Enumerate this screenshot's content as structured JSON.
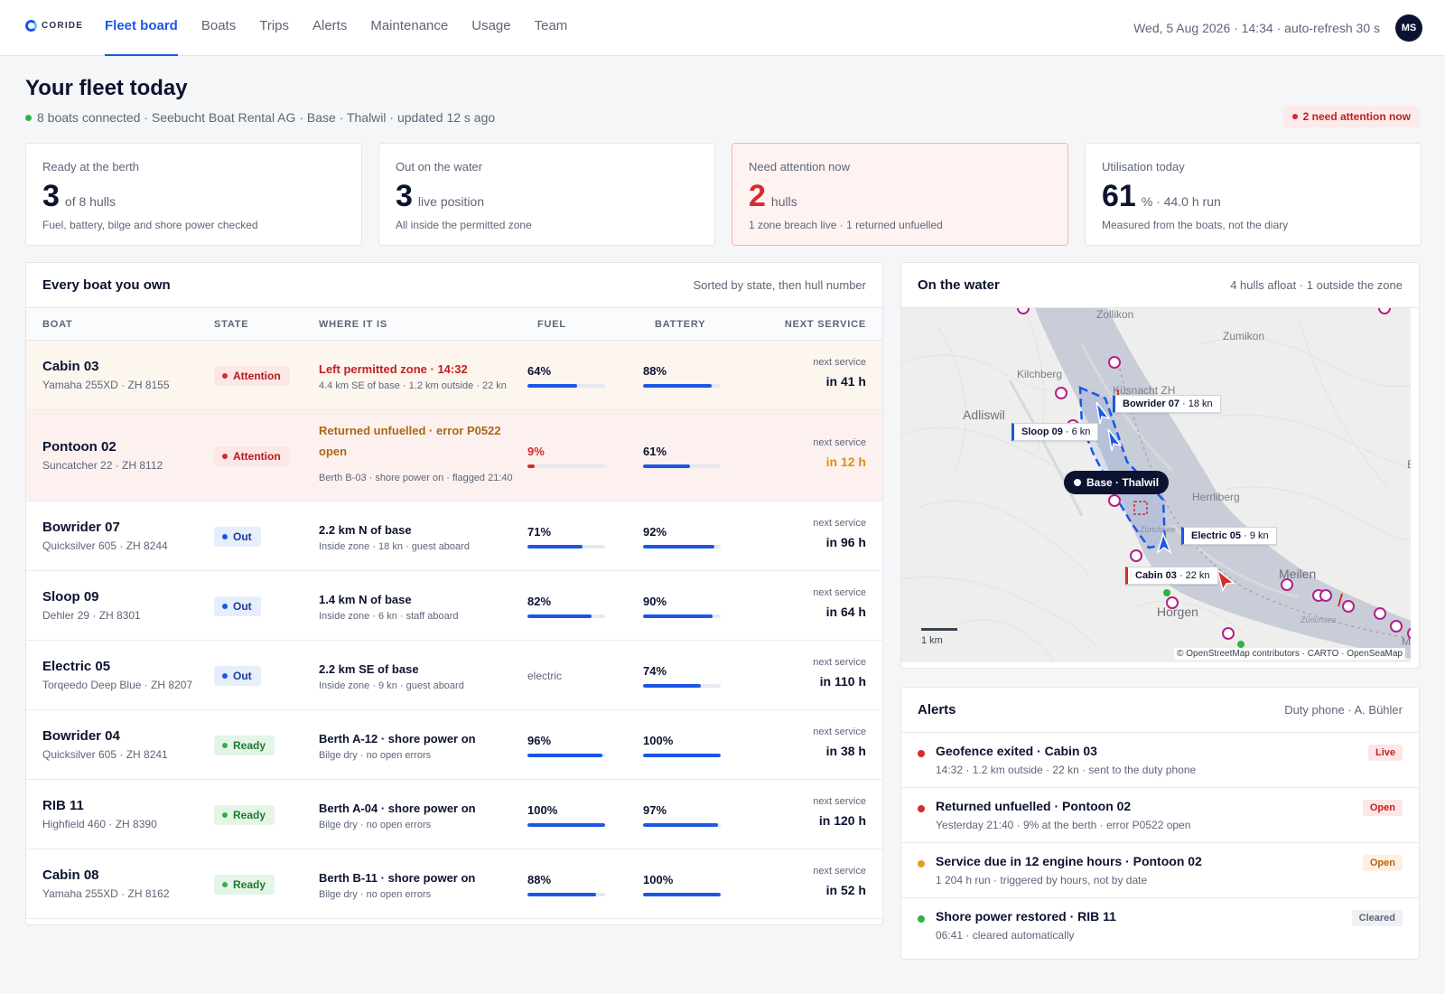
{
  "brand": {
    "name": "CORIDE"
  },
  "nav": [
    {
      "label": "Fleet board",
      "active": true
    },
    {
      "label": "Boats"
    },
    {
      "label": "Trips"
    },
    {
      "label": "Alerts"
    },
    {
      "label": "Maintenance"
    },
    {
      "label": "Usage"
    },
    {
      "label": "Team"
    }
  ],
  "header": {
    "clock": "Wed, 5 Aug 2026 · 14:34 · auto-refresh 30 s",
    "avatar": "MS",
    "title": "Your fleet today",
    "subtitle": "8 boats connected · Seebucht Boat Rental AG · Base · Thalwil · updated 12 s ago",
    "attention_pill": "2 need attention now"
  },
  "kpis": [
    {
      "label": "Ready at the berth",
      "value": "3",
      "unit": "of 8 hulls",
      "note": "Fuel, battery, bilge and shore power checked"
    },
    {
      "label": "Out on the water",
      "value": "3",
      "unit": "live position",
      "note": "All inside the permitted zone"
    },
    {
      "label": "Need attention now",
      "value": "2",
      "unit": "hulls",
      "note": "1 zone breach live · 1 returned unfuelled"
    },
    {
      "label": "Utilisation today",
      "value": "61",
      "unit": "% · 44.0 h run",
      "note": "Measured from the boats, not the diary"
    }
  ],
  "fleet": {
    "title": "Every boat you own",
    "sort_note": "Sorted by state, then hull number",
    "columns": [
      "BOAT",
      "STATE",
      "WHERE IT IS",
      "FUEL",
      "BATTERY",
      "NEXT SERVICE"
    ],
    "rows": [
      {
        "name": "Cabin 03",
        "model": "Yamaha 255XD · ZH 8155",
        "state": "Attention",
        "where": "Left permitted zone · 14:32",
        "where_sub": "4.4 km SE of base · 1.2 km outside · 22 kn",
        "fuel": "64%",
        "fuel_level": 0.64,
        "battery": "88%",
        "battery_level": 0.88,
        "service_caption": "next service",
        "service": "in 41 h"
      },
      {
        "name": "Pontoon 02",
        "model": "Suncatcher 22 · ZH 8112",
        "state": "Attention",
        "where": "Returned unfuelled · error P0522 open",
        "where_sub": "Berth B-03 · shore power on · flagged 21:40",
        "fuel": "9%",
        "fuel_level": 0.09,
        "battery": "61%",
        "battery_level": 0.61,
        "service_caption": "next service",
        "service": "in 12 h"
      },
      {
        "name": "Bowrider 07",
        "model": "Quicksilver 605 · ZH 8244",
        "state": "Out",
        "where": "2.2 km N of base",
        "where_sub": "Inside zone · 18 kn · guest aboard",
        "fuel": "71%",
        "fuel_level": 0.71,
        "battery": "92%",
        "battery_level": 0.92,
        "service_caption": "next service",
        "service": "in 96 h"
      },
      {
        "name": "Sloop 09",
        "model": "Dehler 29 · ZH 8301",
        "state": "Out",
        "where": "1.4 km N of base",
        "where_sub": "Inside zone · 6 kn · staff aboard",
        "fuel": "82%",
        "fuel_level": 0.82,
        "battery": "90%",
        "battery_level": 0.9,
        "service_caption": "next service",
        "service": "in 64 h"
      },
      {
        "name": "Electric 05",
        "model": "Torqeedo Deep Blue · ZH 8207",
        "state": "Out",
        "where": "2.2 km SE of base",
        "where_sub": "Inside zone · 9 kn · guest aboard",
        "fuel": "electric",
        "fuel_level": null,
        "battery": "74%",
        "battery_level": 0.74,
        "service_caption": "next service",
        "service": "in 110 h"
      },
      {
        "name": "Bowrider 04",
        "model": "Quicksilver 605 · ZH 8241",
        "state": "Ready",
        "where": "Berth A-12 · shore power on",
        "where_sub": "Bilge dry · no open errors",
        "fuel": "96%",
        "fuel_level": 0.96,
        "battery": "100%",
        "battery_level": 1.0,
        "service_caption": "next service",
        "service": "in 38 h"
      },
      {
        "name": "RIB 11",
        "model": "Highfield 460 · ZH 8390",
        "state": "Ready",
        "where": "Berth A-04 · shore power on",
        "where_sub": "Bilge dry · no open errors",
        "fuel": "100%",
        "fuel_level": 1.0,
        "battery": "97%",
        "battery_level": 0.97,
        "service_caption": "next service",
        "service": "in 120 h"
      },
      {
        "name": "Cabin 08",
        "model": "Yamaha 255XD · ZH 8162",
        "state": "Ready",
        "where": "Berth B-11 · shore power on",
        "where_sub": "Bilge dry · no open errors",
        "fuel": "88%",
        "fuel_level": 0.88,
        "battery": "100%",
        "battery_level": 1.0,
        "service_caption": "next service",
        "service": "in 52 h"
      }
    ]
  },
  "map": {
    "title": "On the water",
    "meta": "4 hulls afloat · 1 outside the zone",
    "places": [
      "Zollikon",
      "Zumikon",
      "Kilchberg",
      "Küsnacht ZH",
      "Adliswil",
      "Herrliberg",
      "Zürichsee",
      "Meilen",
      "Horgen",
      "Zürichsee",
      "Eg",
      "Ma"
    ],
    "boats": [
      "Bowrider 07",
      "Sloop 09",
      "Electric 05",
      "Cabin 03"
    ],
    "speeds": [
      "18 kn",
      "6 kn",
      "9 kn",
      "22 kn"
    ],
    "base": "Base · Thalwil",
    "scale": "1 km",
    "attribution": "© OpenStreetMap contributors · CARTO · OpenSeaMap"
  },
  "alerts": {
    "title": "Alerts",
    "meta": "Duty phone · A. Bühler",
    "items": [
      {
        "title": "Geofence exited · Cabin 03",
        "sub": "14:32 · 1.2 km outside · 22 kn · sent to the duty phone",
        "status": "Live",
        "color": "#d42b2b"
      },
      {
        "title": "Returned unfuelled · Pontoon 02",
        "sub": "Yesterday 21:40 · 9% at the berth · error P0522 open",
        "status": "Open",
        "color": "#d42b2b"
      },
      {
        "title": "Service due in 12 engine hours · Pontoon 02",
        "sub": "1 204 h run · triggered by hours, not by date",
        "status": "Open",
        "color": "#e89a2a"
      },
      {
        "title": "Shore power restored · RIB 11",
        "sub": "06:41 · cleared automatically",
        "status": "Cleared",
        "color": "#2fb344"
      }
    ]
  }
}
